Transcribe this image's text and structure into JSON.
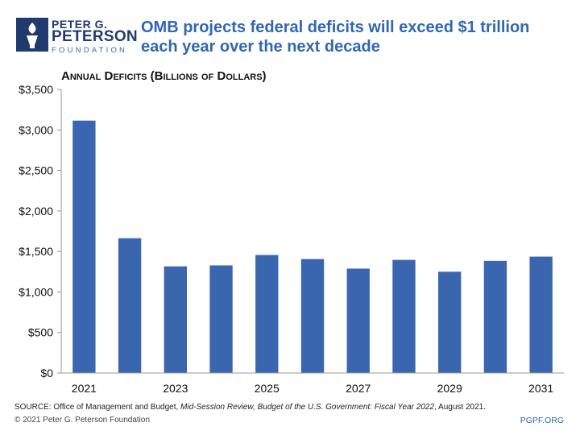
{
  "logo": {
    "line1": "PETER G.",
    "line2": "PETERSON",
    "line3": "FOUNDATION"
  },
  "headline": "OMB projects federal deficits will exceed $1 trillion each year over the next decade",
  "footer": {
    "source_prefix": "SOURCE: Office of Management and Budget, ",
    "source_italic": "Mid-Session Review, Budget of the U.S. Government: Fiscal Year 2022",
    "source_suffix": ", August 2021.",
    "copyright": "© 2021 Peter G. Peterson Foundation",
    "url": "PGPF.ORG"
  },
  "colors": {
    "bar": "#3a66b0",
    "headline": "#2f67b1",
    "logo": "#1f3b6e"
  },
  "chart_data": {
    "type": "bar",
    "title": "Annual Deficits (Billions of Dollars)",
    "xlabel": "",
    "ylabel": "",
    "categories": [
      "2021",
      "2022",
      "2023",
      "2024",
      "2025",
      "2026",
      "2027",
      "2028",
      "2029",
      "2030",
      "2031"
    ],
    "x_tick_labels": [
      "2021",
      "",
      "2023",
      "",
      "2025",
      "",
      "2027",
      "",
      "2029",
      "",
      "2031"
    ],
    "values": [
      3115,
      1663,
      1316,
      1328,
      1456,
      1406,
      1288,
      1396,
      1250,
      1384,
      1436
    ],
    "ylim": [
      0,
      3500
    ],
    "y_ticks": [
      0,
      500,
      1000,
      1500,
      2000,
      2500,
      3000,
      3500
    ],
    "y_tick_labels": [
      "$0",
      "$500",
      "$1,000",
      "$1,500",
      "$2,000",
      "$2,500",
      "$3,000",
      "$3,500"
    ],
    "grid": false,
    "legend": "none"
  }
}
